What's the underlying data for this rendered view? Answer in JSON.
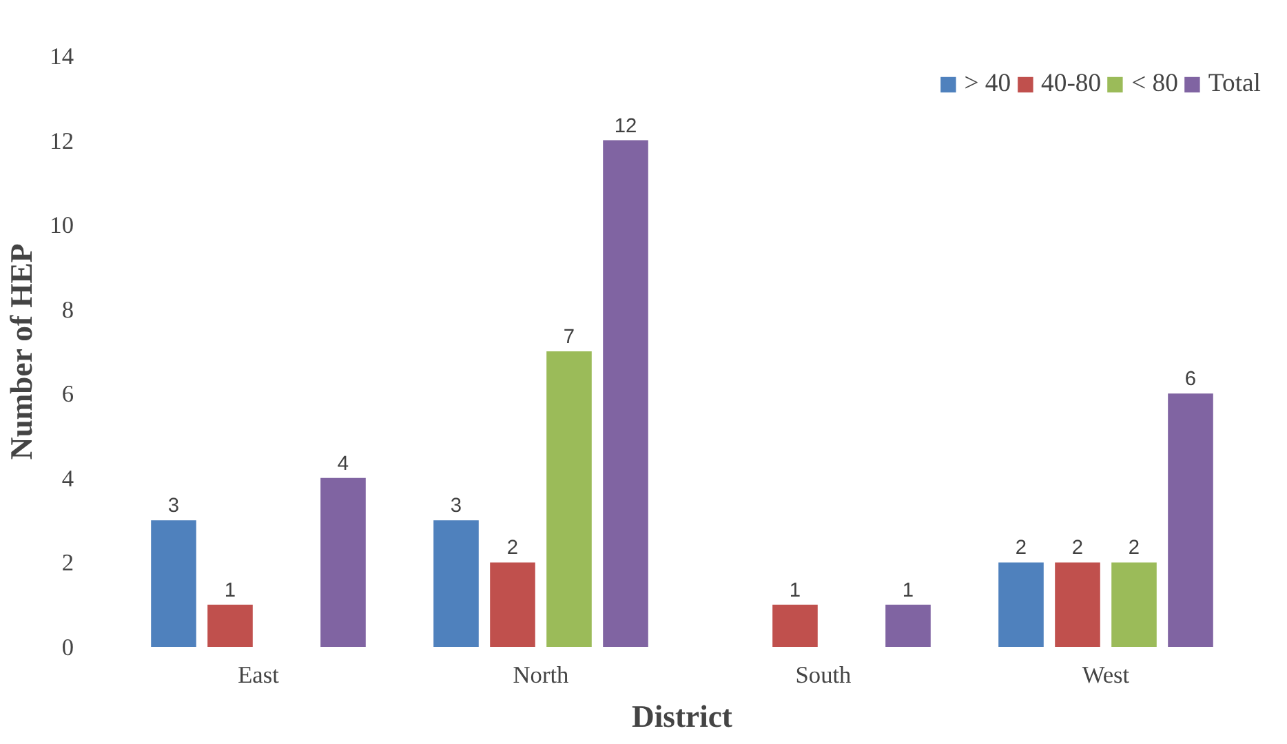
{
  "chart_data": {
    "type": "bar",
    "xlabel": "District",
    "ylabel": "Number of HEP",
    "categories": [
      "East",
      "North",
      "South",
      "West"
    ],
    "series": [
      {
        "name": "> 40",
        "color": "#4f81bd",
        "values": [
          3,
          3,
          null,
          2
        ]
      },
      {
        "name": "40-80",
        "color": "#c0504d",
        "values": [
          1,
          2,
          1,
          2
        ]
      },
      {
        "name": "< 80",
        "color": "#9bbb59",
        "values": [
          null,
          7,
          null,
          2
        ]
      },
      {
        "name": "Total",
        "color": "#8064a2",
        "values": [
          4,
          12,
          1,
          6
        ]
      }
    ],
    "ylim": [
      0,
      14
    ],
    "yticks": [
      0,
      2,
      4,
      6,
      8,
      10,
      12,
      14
    ],
    "data_labels": true,
    "grid": false,
    "legend": "top right"
  }
}
